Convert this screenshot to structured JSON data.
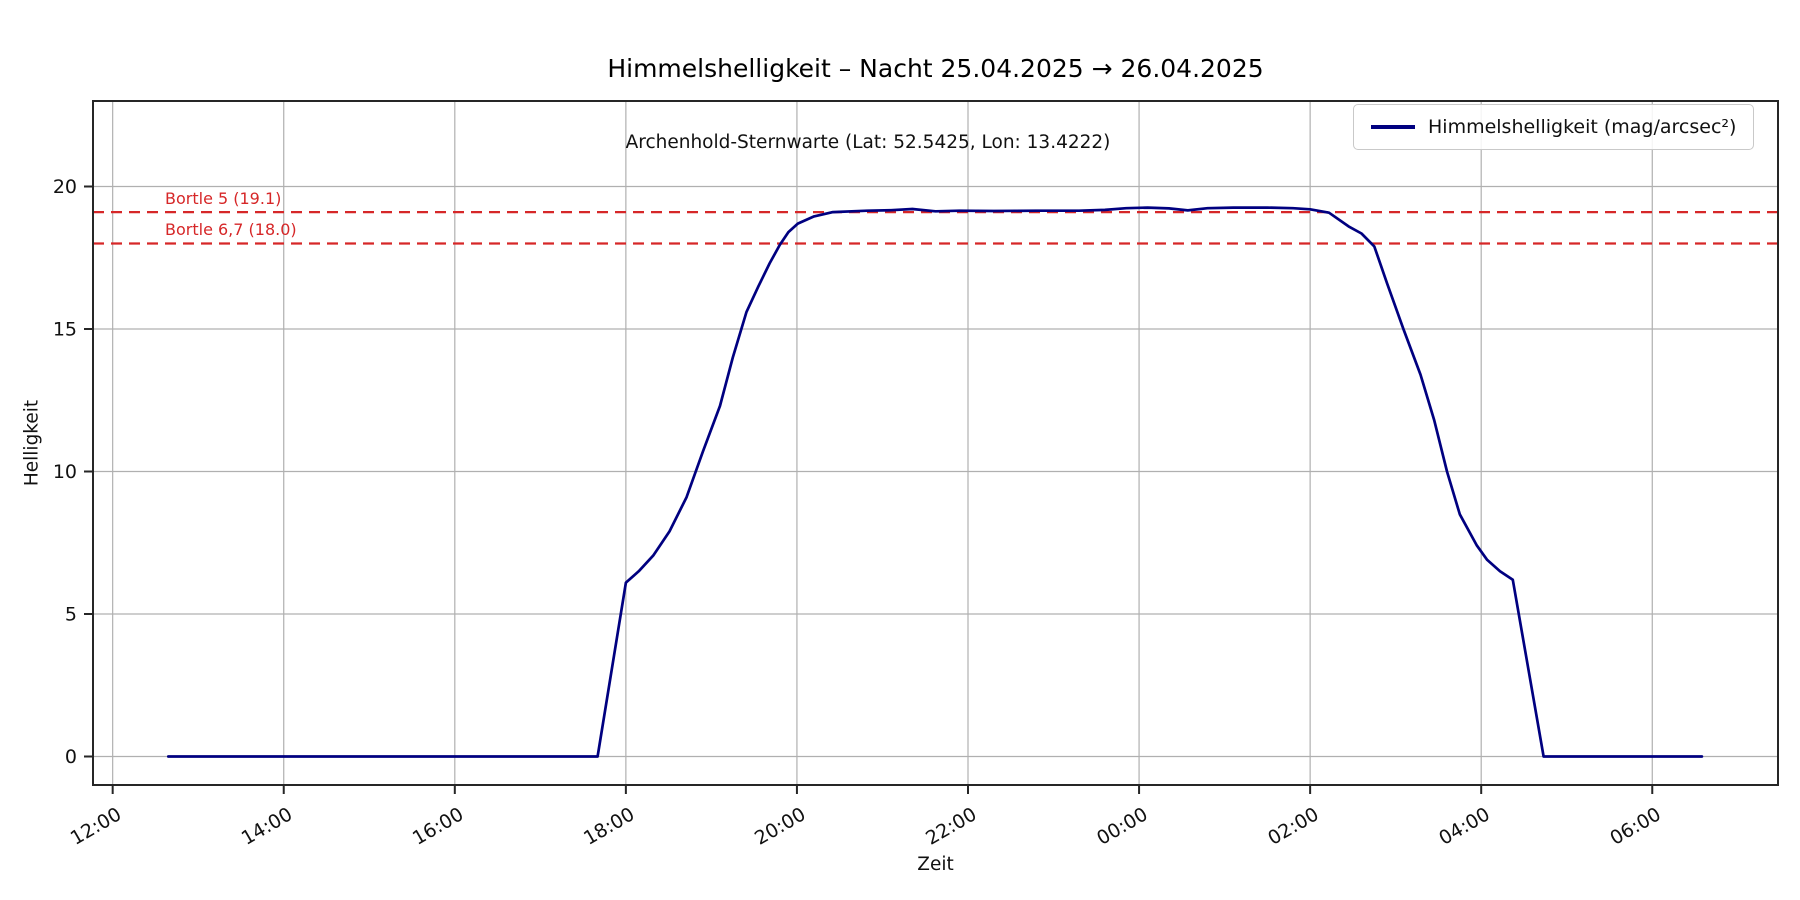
{
  "figure": {
    "background": "#ffffff"
  },
  "chart_data": {
    "type": "line",
    "title": "Himmelshelligkeit – Nacht 25.04.2025 → 26.04.2025",
    "subtitle": "Archenhold-Sternwarte (Lat: 52.5425, Lon: 13.4222)",
    "xlabel": "Zeit",
    "ylabel": "Helligkeit",
    "x_unit": "hours after 12:00 on 25.04.2025",
    "xlim": [
      -0.23,
      19.47
    ],
    "ylim": [
      -1,
      23
    ],
    "grid": true,
    "grid_color": "#b0b0b0",
    "spine_color": "#262626",
    "xticks": [
      {
        "h": 0,
        "label": "12:00"
      },
      {
        "h": 2,
        "label": "14:00"
      },
      {
        "h": 4,
        "label": "16:00"
      },
      {
        "h": 6,
        "label": "18:00"
      },
      {
        "h": 8,
        "label": "20:00"
      },
      {
        "h": 10,
        "label": "22:00"
      },
      {
        "h": 12,
        "label": "00:00"
      },
      {
        "h": 14,
        "label": "02:00"
      },
      {
        "h": 16,
        "label": "04:00"
      },
      {
        "h": 18,
        "label": "06:00"
      }
    ],
    "yticks": [
      0,
      5,
      10,
      15,
      20
    ],
    "legend": {
      "position": "upper right"
    },
    "series": [
      {
        "name": "Himmelshelligkeit (mag/arcsec²)",
        "color": "#000080",
        "points": [
          [
            0.65,
            0
          ],
          [
            5.67,
            0
          ],
          [
            6.0,
            6.1
          ],
          [
            6.15,
            6.5
          ],
          [
            6.32,
            7.05
          ],
          [
            6.51,
            7.9
          ],
          [
            6.71,
            9.1
          ],
          [
            6.9,
            10.7
          ],
          [
            7.1,
            12.3
          ],
          [
            7.25,
            14.0
          ],
          [
            7.41,
            15.6
          ],
          [
            7.55,
            16.5
          ],
          [
            7.68,
            17.3
          ],
          [
            7.8,
            17.95
          ],
          [
            7.9,
            18.4
          ],
          [
            8.01,
            18.7
          ],
          [
            8.2,
            18.95
          ],
          [
            8.42,
            19.1
          ],
          [
            8.82,
            19.15
          ],
          [
            9.1,
            19.17
          ],
          [
            9.35,
            19.21
          ],
          [
            9.62,
            19.13
          ],
          [
            9.9,
            19.15
          ],
          [
            10.3,
            19.14
          ],
          [
            10.8,
            19.15
          ],
          [
            11.3,
            19.15
          ],
          [
            11.6,
            19.18
          ],
          [
            11.85,
            19.24
          ],
          [
            12.1,
            19.26
          ],
          [
            12.35,
            19.23
          ],
          [
            12.57,
            19.16
          ],
          [
            12.8,
            19.24
          ],
          [
            13.1,
            19.26
          ],
          [
            13.5,
            19.26
          ],
          [
            13.8,
            19.24
          ],
          [
            14.0,
            19.2
          ],
          [
            14.22,
            19.08
          ],
          [
            14.45,
            18.6
          ],
          [
            14.6,
            18.35
          ],
          [
            14.75,
            17.9
          ],
          [
            14.9,
            16.6
          ],
          [
            15.09,
            15.0
          ],
          [
            15.29,
            13.4
          ],
          [
            15.45,
            11.8
          ],
          [
            15.6,
            10.0
          ],
          [
            15.75,
            8.5
          ],
          [
            15.95,
            7.4
          ],
          [
            16.07,
            6.9
          ],
          [
            16.22,
            6.5
          ],
          [
            16.37,
            6.2
          ],
          [
            16.73,
            0
          ],
          [
            18.58,
            0
          ]
        ]
      }
    ],
    "hlines": [
      {
        "label": "Bortle 5 (19.1)",
        "value": 19.1,
        "color": "#d62728",
        "style": "dashed"
      },
      {
        "label": "Bortle 6,7 (18.0)",
        "value": 18.0,
        "color": "#d62728",
        "style": "dashed"
      }
    ]
  }
}
